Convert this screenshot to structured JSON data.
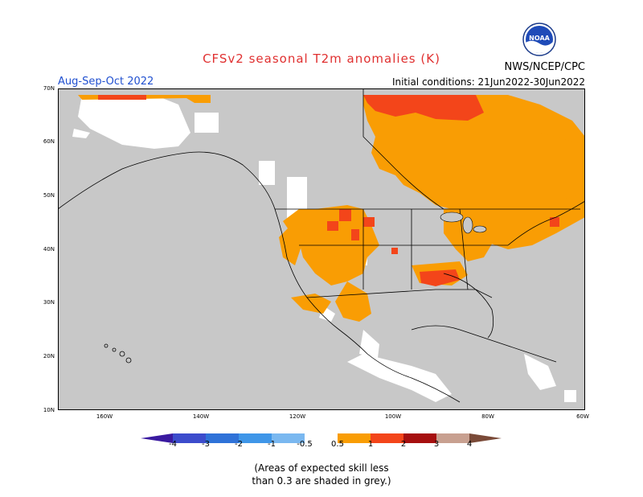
{
  "title": "CFSv2 seasonal T2m anomalies (K)",
  "season": "Aug-Sep-Oct 2022",
  "agency": "NWS/NCEP/CPC",
  "initial_conditions": "Initial conditions: 21Jun2022-30Jun2022",
  "logo_text": "NOAA",
  "lat_labels": [
    "70N",
    "60N",
    "50N",
    "40N",
    "30N",
    "20N",
    "10N"
  ],
  "lon_labels": [
    "160W",
    "140W",
    "120W",
    "100W",
    "80W",
    "60W"
  ],
  "colorbar": {
    "labels": [
      "-4",
      "-3",
      "-2",
      "-1",
      "-0.5",
      "0.5",
      "1",
      "2",
      "3",
      "4"
    ],
    "colors": [
      "#3a1aa0",
      "#3c4ccc",
      "#2f72d8",
      "#3f96e8",
      "#7ab8f0",
      "#ffffff",
      "#f99d04",
      "#f3451a",
      "#a60f0f",
      "#c8a090",
      "#7a4a38"
    ]
  },
  "skill_note_line1": "(Areas of expected skill less",
  "skill_note_line2": "than 0.3 are shaded in grey.)",
  "colors": {
    "no_skill_grey": "#c8c8c8",
    "anomaly_0_5_to_1": "#f99d04",
    "anomaly_1_to_2": "#f3451a",
    "neutral_white": "#ffffff"
  }
}
